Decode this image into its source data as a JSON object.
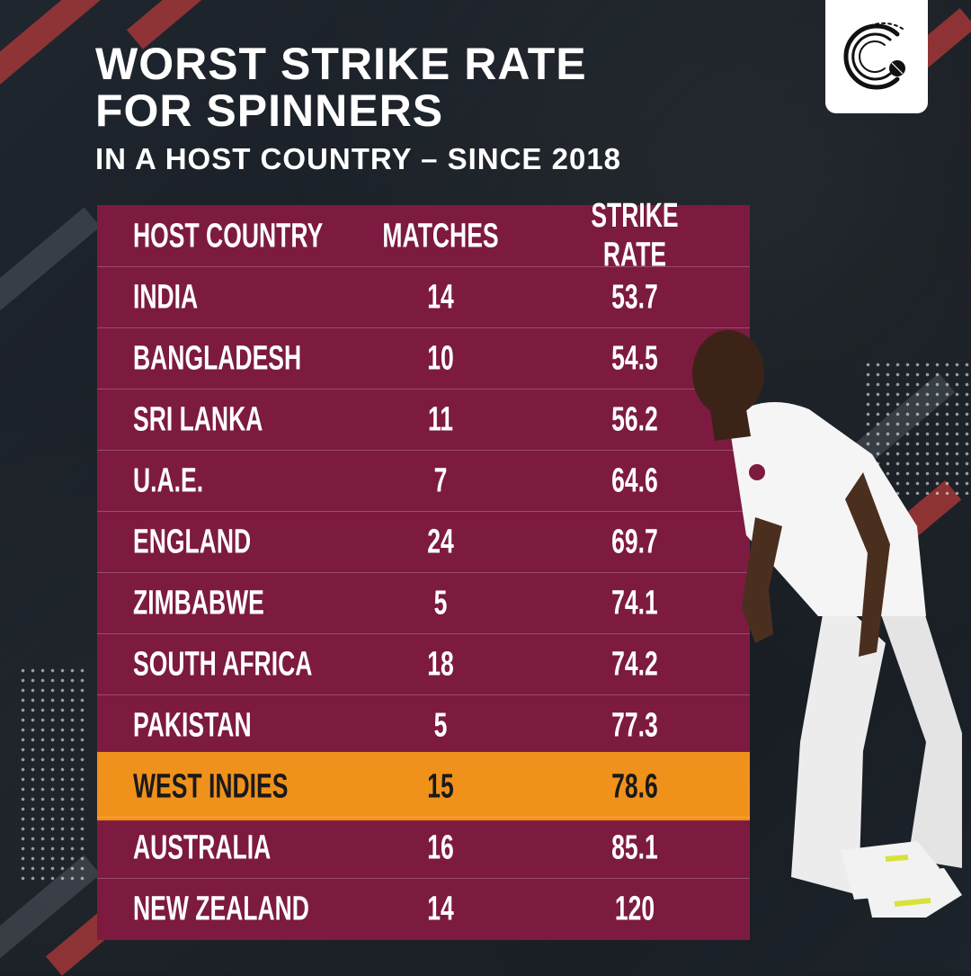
{
  "title_lines": [
    "WORST STRIKE RATE",
    "FOR SPINNERS"
  ],
  "subtitle": "IN A HOST COUNTRY – SINCE 2018",
  "logo_icon": "cricket-ball-c-logo-icon",
  "colors": {
    "table_bg": "#7d1a40",
    "highlight_bg": "#f0911c",
    "background": "#1b2027",
    "accent_stripe": "#b43a3a"
  },
  "table": {
    "headers": [
      "HOST COUNTRY",
      "MATCHES",
      "STRIKE RATE"
    ],
    "rows": [
      {
        "country": "INDIA",
        "matches": "14",
        "strike_rate": "53.7"
      },
      {
        "country": "BANGLADESH",
        "matches": "10",
        "strike_rate": "54.5"
      },
      {
        "country": "SRI LANKA",
        "matches": "11",
        "strike_rate": "56.2"
      },
      {
        "country": "U.A.E.",
        "matches": "7",
        "strike_rate": "64.6"
      },
      {
        "country": "ENGLAND",
        "matches": "24",
        "strike_rate": "69.7"
      },
      {
        "country": "ZIMBABWE",
        "matches": "5",
        "strike_rate": "74.1"
      },
      {
        "country": "SOUTH AFRICA",
        "matches": "18",
        "strike_rate": "74.2"
      },
      {
        "country": "PAKISTAN",
        "matches": "5",
        "strike_rate": "77.3"
      },
      {
        "country": "WEST INDIES",
        "matches": "15",
        "strike_rate": "78.6",
        "highlight": true
      },
      {
        "country": "AUSTRALIA",
        "matches": "16",
        "strike_rate": "85.1"
      },
      {
        "country": "NEW ZEALAND",
        "matches": "14",
        "strike_rate": "120"
      }
    ]
  },
  "player_image": "cricket-bowler-photo"
}
